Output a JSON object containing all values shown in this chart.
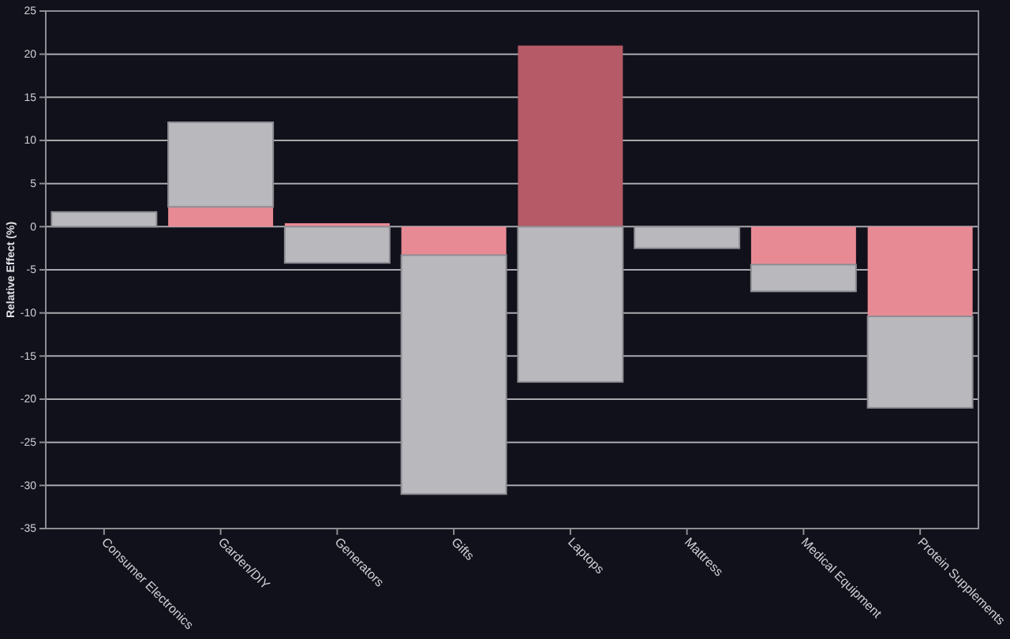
{
  "chart_data": {
    "type": "bar",
    "ylabel": "Relative Effect (%)",
    "stacked": true,
    "categories": [
      "Consumer Electronics",
      "Garden/DIY",
      "Generators",
      "Gifts",
      "Laptops",
      "Mattress",
      "Medical Equipment",
      "Protein Supplements"
    ],
    "series": [
      {
        "colors": [
          "#e88a94",
          "#e88a94",
          "#e88a94",
          "#e88a94",
          "#b55a66",
          "#e88a94",
          "#e88a94",
          "#e88a94"
        ],
        "values": [
          0,
          2.3,
          0.4,
          -3.3,
          21.0,
          0,
          -4.4,
          -10.4
        ]
      },
      {
        "color": "#b9b8bd",
        "values": [
          1.7,
          9.8,
          -4.2,
          -27.7,
          -18.0,
          -2.5,
          -3.1,
          -10.6
        ]
      }
    ],
    "ylim": [
      -35,
      25
    ],
    "yticks": [
      -35,
      -30,
      -25,
      -20,
      -15,
      -10,
      -5,
      0,
      5,
      10,
      15,
      20,
      25
    ],
    "grid": "y"
  }
}
